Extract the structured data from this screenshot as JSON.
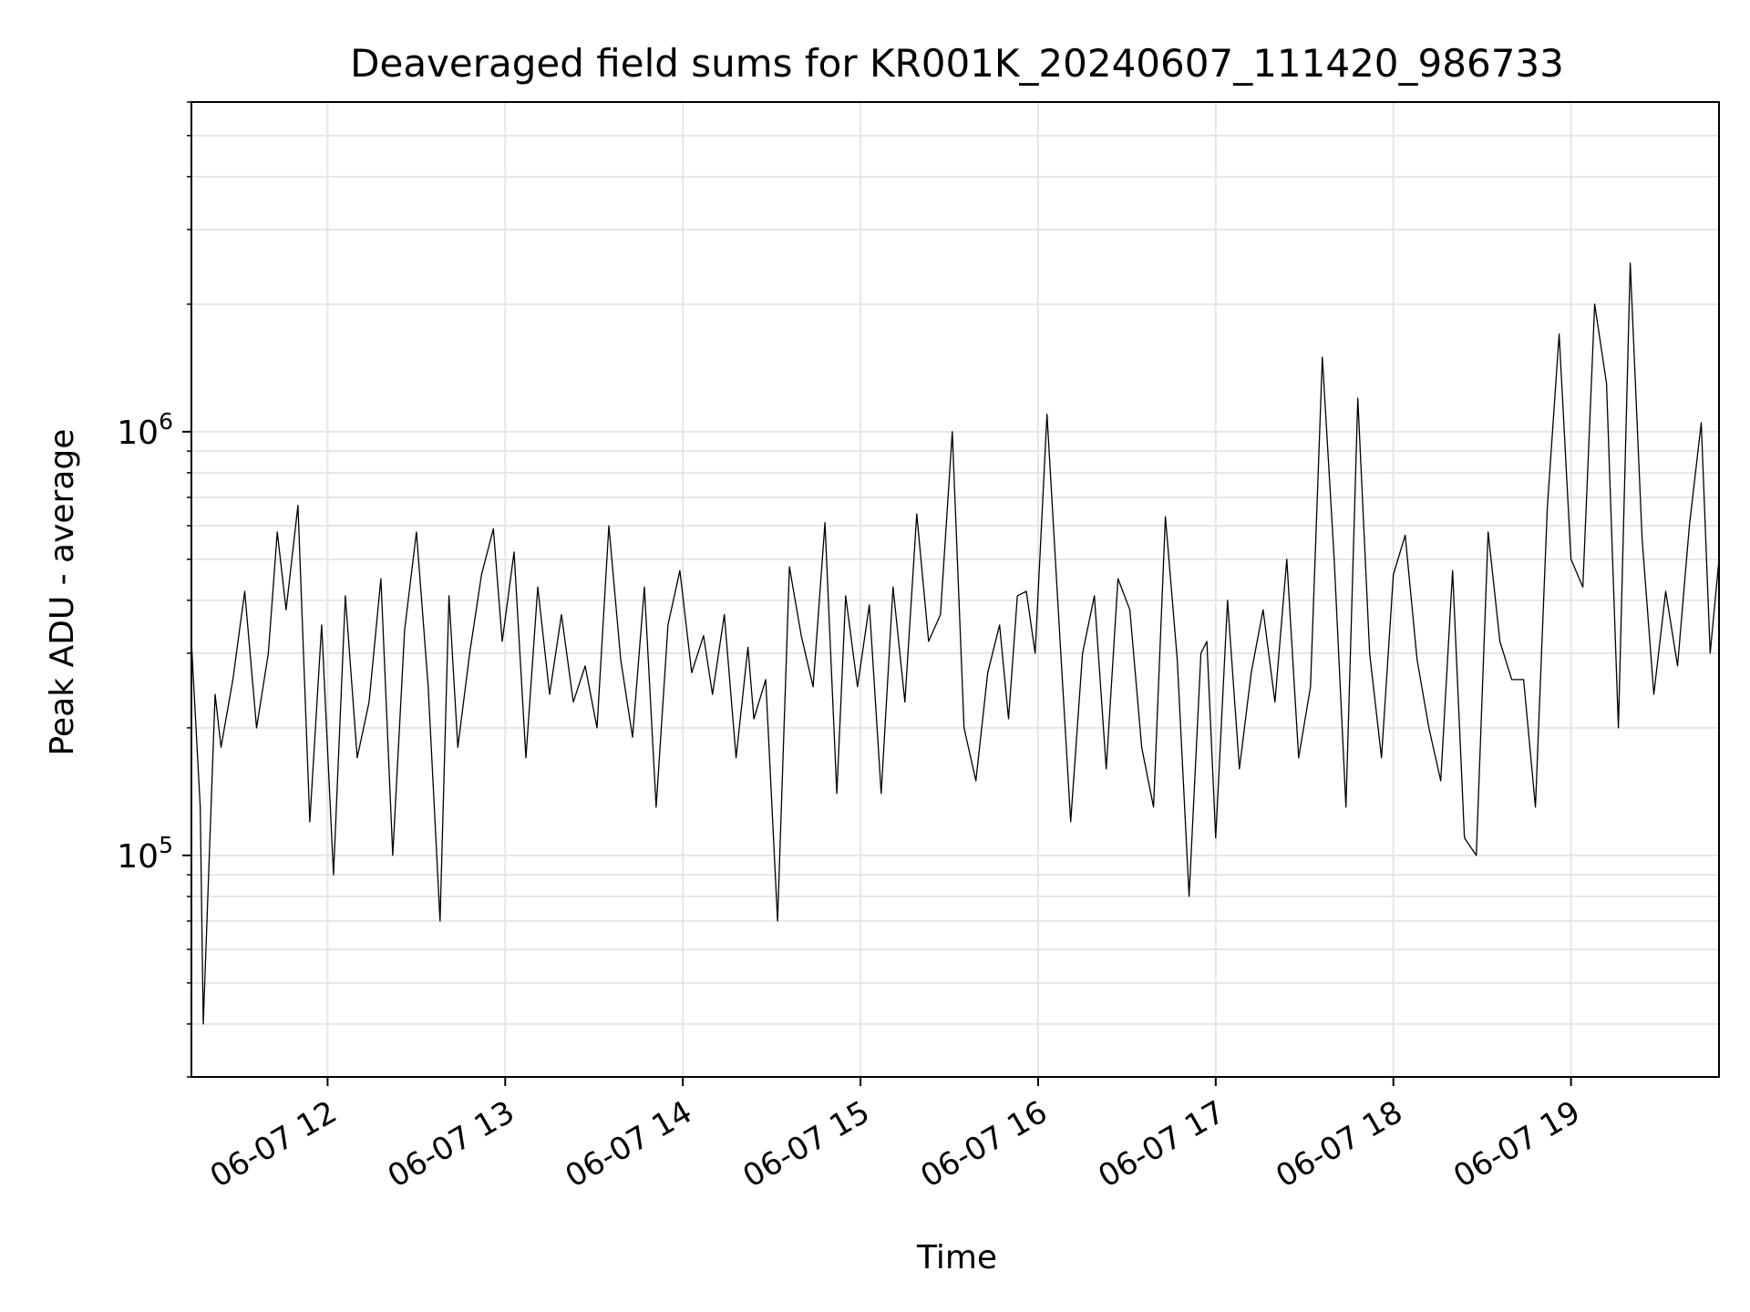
{
  "chart_data": {
    "type": "line",
    "title": "Deaveraged field sums for KR001K_20240607_111420_986733",
    "xlabel": "Time",
    "ylabel": "Peak ADU - average",
    "y_scale": "log",
    "ylim": [
      30000,
      6000000
    ],
    "xlim": [
      "2024-06-07 11:14",
      "2024-06-07 19:50"
    ],
    "grid": true,
    "x_ticks": [
      {
        "label": "06-07 12",
        "t": "2024-06-07 12:00"
      },
      {
        "label": "06-07 13",
        "t": "2024-06-07 13:00"
      },
      {
        "label": "06-07 14",
        "t": "2024-06-07 14:00"
      },
      {
        "label": "06-07 15",
        "t": "2024-06-07 15:00"
      },
      {
        "label": "06-07 16",
        "t": "2024-06-07 16:00"
      },
      {
        "label": "06-07 17",
        "t": "2024-06-07 17:00"
      },
      {
        "label": "06-07 18",
        "t": "2024-06-07 18:00"
      },
      {
        "label": "06-07 19",
        "t": "2024-06-07 19:00"
      }
    ],
    "y_ticks": [
      {
        "base": "10",
        "exp": "5",
        "value": 100000
      },
      {
        "base": "10",
        "exp": "6",
        "value": 1000000
      }
    ],
    "line_color": "#000000",
    "series": [
      {
        "x": [
          "2024-06-07 11:14",
          "2024-06-07 11:17",
          "2024-06-07 11:18",
          "2024-06-07 11:22",
          "2024-06-07 11:24",
          "2024-06-07 11:28",
          "2024-06-07 11:32",
          "2024-06-07 11:36",
          "2024-06-07 11:40",
          "2024-06-07 11:43",
          "2024-06-07 11:46",
          "2024-06-07 11:50",
          "2024-06-07 11:54",
          "2024-06-07 11:58",
          "2024-06-07 12:02",
          "2024-06-07 12:06",
          "2024-06-07 12:10",
          "2024-06-07 12:14",
          "2024-06-07 12:18",
          "2024-06-07 12:22",
          "2024-06-07 12:26",
          "2024-06-07 12:30",
          "2024-06-07 12:34",
          "2024-06-07 12:38",
          "2024-06-07 12:41",
          "2024-06-07 12:44",
          "2024-06-07 12:48",
          "2024-06-07 12:52",
          "2024-06-07 12:56",
          "2024-06-07 12:59",
          "2024-06-07 13:03",
          "2024-06-07 13:07",
          "2024-06-07 13:11",
          "2024-06-07 13:15",
          "2024-06-07 13:19",
          "2024-06-07 13:23",
          "2024-06-07 13:27",
          "2024-06-07 13:31",
          "2024-06-07 13:35",
          "2024-06-07 13:39",
          "2024-06-07 13:43",
          "2024-06-07 13:47",
          "2024-06-07 13:51",
          "2024-06-07 13:55",
          "2024-06-07 13:59",
          "2024-06-07 14:03",
          "2024-06-07 14:07",
          "2024-06-07 14:10",
          "2024-06-07 14:14",
          "2024-06-07 14:18",
          "2024-06-07 14:22",
          "2024-06-07 14:24",
          "2024-06-07 14:28",
          "2024-06-07 14:32",
          "2024-06-07 14:36",
          "2024-06-07 14:40",
          "2024-06-07 14:44",
          "2024-06-07 14:48",
          "2024-06-07 14:52",
          "2024-06-07 14:55",
          "2024-06-07 14:59",
          "2024-06-07 15:03",
          "2024-06-07 15:07",
          "2024-06-07 15:11",
          "2024-06-07 15:15",
          "2024-06-07 15:19",
          "2024-06-07 15:23",
          "2024-06-07 15:27",
          "2024-06-07 15:31",
          "2024-06-07 15:35",
          "2024-06-07 15:39",
          "2024-06-07 15:43",
          "2024-06-07 15:47",
          "2024-06-07 15:50",
          "2024-06-07 15:53",
          "2024-06-07 15:56",
          "2024-06-07 15:59",
          "2024-06-07 16:03",
          "2024-06-07 16:07",
          "2024-06-07 16:11",
          "2024-06-07 16:15",
          "2024-06-07 16:19",
          "2024-06-07 16:23",
          "2024-06-07 16:27",
          "2024-06-07 16:31",
          "2024-06-07 16:35",
          "2024-06-07 16:39",
          "2024-06-07 16:43",
          "2024-06-07 16:47",
          "2024-06-07 16:51",
          "2024-06-07 16:55",
          "2024-06-07 16:57",
          "2024-06-07 17:00",
          "2024-06-07 17:04",
          "2024-06-07 17:08",
          "2024-06-07 17:12",
          "2024-06-07 17:16",
          "2024-06-07 17:20",
          "2024-06-07 17:24",
          "2024-06-07 17:28",
          "2024-06-07 17:32",
          "2024-06-07 17:36",
          "2024-06-07 17:40",
          "2024-06-07 17:44",
          "2024-06-07 17:48",
          "2024-06-07 17:52",
          "2024-06-07 17:56",
          "2024-06-07 18:00",
          "2024-06-07 18:04",
          "2024-06-07 18:08",
          "2024-06-07 18:12",
          "2024-06-07 18:16",
          "2024-06-07 18:20",
          "2024-06-07 18:24",
          "2024-06-07 18:28",
          "2024-06-07 18:32",
          "2024-06-07 18:36",
          "2024-06-07 18:40",
          "2024-06-07 18:44",
          "2024-06-07 18:48",
          "2024-06-07 18:52",
          "2024-06-07 18:56",
          "2024-06-07 19:00",
          "2024-06-07 19:04",
          "2024-06-07 19:08",
          "2024-06-07 19:12",
          "2024-06-07 19:16",
          "2024-06-07 19:20",
          "2024-06-07 19:24",
          "2024-06-07 19:28",
          "2024-06-07 19:32",
          "2024-06-07 19:36",
          "2024-06-07 19:40",
          "2024-06-07 19:44",
          "2024-06-07 19:47",
          "2024-06-07 19:50"
        ],
        "y": [
          320000,
          130000,
          40000,
          240000,
          180000,
          260000,
          420000,
          200000,
          300000,
          580000,
          380000,
          670000,
          120000,
          350000,
          90000,
          410000,
          170000,
          230000,
          450000,
          100000,
          340000,
          580000,
          250000,
          70000,
          410000,
          180000,
          300000,
          460000,
          590000,
          320000,
          520000,
          170000,
          430000,
          240000,
          370000,
          230000,
          280000,
          200000,
          600000,
          290000,
          190000,
          430000,
          130000,
          350000,
          470000,
          270000,
          330000,
          240000,
          370000,
          170000,
          310000,
          210000,
          260000,
          70000,
          480000,
          330000,
          250000,
          610000,
          140000,
          410000,
          250000,
          390000,
          140000,
          430000,
          230000,
          640000,
          320000,
          370000,
          1000000,
          200000,
          150000,
          270000,
          350000,
          210000,
          410000,
          420000,
          300000,
          1100000,
          360000,
          120000,
          300000,
          410000,
          160000,
          450000,
          380000,
          180000,
          130000,
          630000,
          290000,
          80000,
          300000,
          320000,
          110000,
          400000,
          160000,
          270000,
          380000,
          230000,
          500000,
          170000,
          250000,
          1500000,
          500000,
          130000,
          1200000,
          300000,
          170000,
          460000,
          570000,
          290000,
          200000,
          150000,
          470000,
          110000,
          100000,
          580000,
          320000,
          260000,
          260000,
          130000,
          660000,
          1700000,
          500000,
          430000,
          2000000,
          1300000,
          200000,
          2500000,
          560000,
          240000,
          420000,
          280000,
          600000,
          1050000,
          300000,
          500000
        ],
        "name": ""
      }
    ]
  }
}
